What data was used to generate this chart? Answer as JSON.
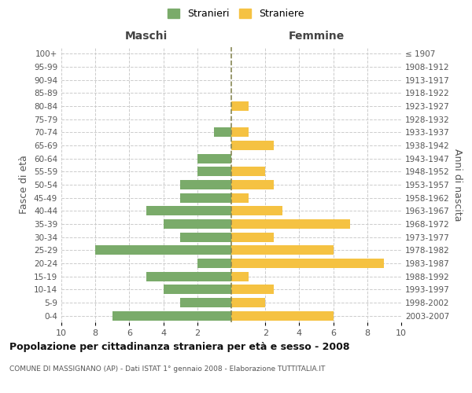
{
  "age_groups": [
    "100+",
    "95-99",
    "90-94",
    "85-89",
    "80-84",
    "75-79",
    "70-74",
    "65-69",
    "60-64",
    "55-59",
    "50-54",
    "45-49",
    "40-44",
    "35-39",
    "30-34",
    "25-29",
    "20-24",
    "15-19",
    "10-14",
    "5-9",
    "0-4"
  ],
  "birth_years": [
    "≤ 1907",
    "1908-1912",
    "1913-1917",
    "1918-1922",
    "1923-1927",
    "1928-1932",
    "1933-1937",
    "1938-1942",
    "1943-1947",
    "1948-1952",
    "1953-1957",
    "1958-1962",
    "1963-1967",
    "1968-1972",
    "1973-1977",
    "1978-1982",
    "1983-1987",
    "1988-1992",
    "1993-1997",
    "1998-2002",
    "2003-2007"
  ],
  "maschi": [
    0,
    0,
    0,
    0,
    0,
    0,
    1,
    0,
    2,
    2,
    3,
    3,
    5,
    4,
    3,
    8,
    2,
    5,
    4,
    3,
    7
  ],
  "femmine": [
    0,
    0,
    0,
    0,
    1,
    0,
    1,
    2.5,
    0,
    2,
    2.5,
    1,
    3,
    7,
    2.5,
    6,
    9,
    1,
    2.5,
    2,
    6
  ],
  "maschi_color": "#7aab6a",
  "femmine_color": "#f5c242",
  "center_line_color": "#888855",
  "bg_color": "#ffffff",
  "grid_color": "#cccccc",
  "title": "Popolazione per cittadinanza straniera per età e sesso - 2008",
  "subtitle": "COMUNE DI MASSIGNANO (AP) - Dati ISTAT 1° gennaio 2008 - Elaborazione TUTTITALIA.IT",
  "xlabel_left": "Maschi",
  "xlabel_right": "Femmine",
  "ylabel_left": "Fasce di età",
  "ylabel_right": "Anni di nascita",
  "legend_maschi": "Stranieri",
  "legend_femmine": "Straniere",
  "xlim": 10
}
